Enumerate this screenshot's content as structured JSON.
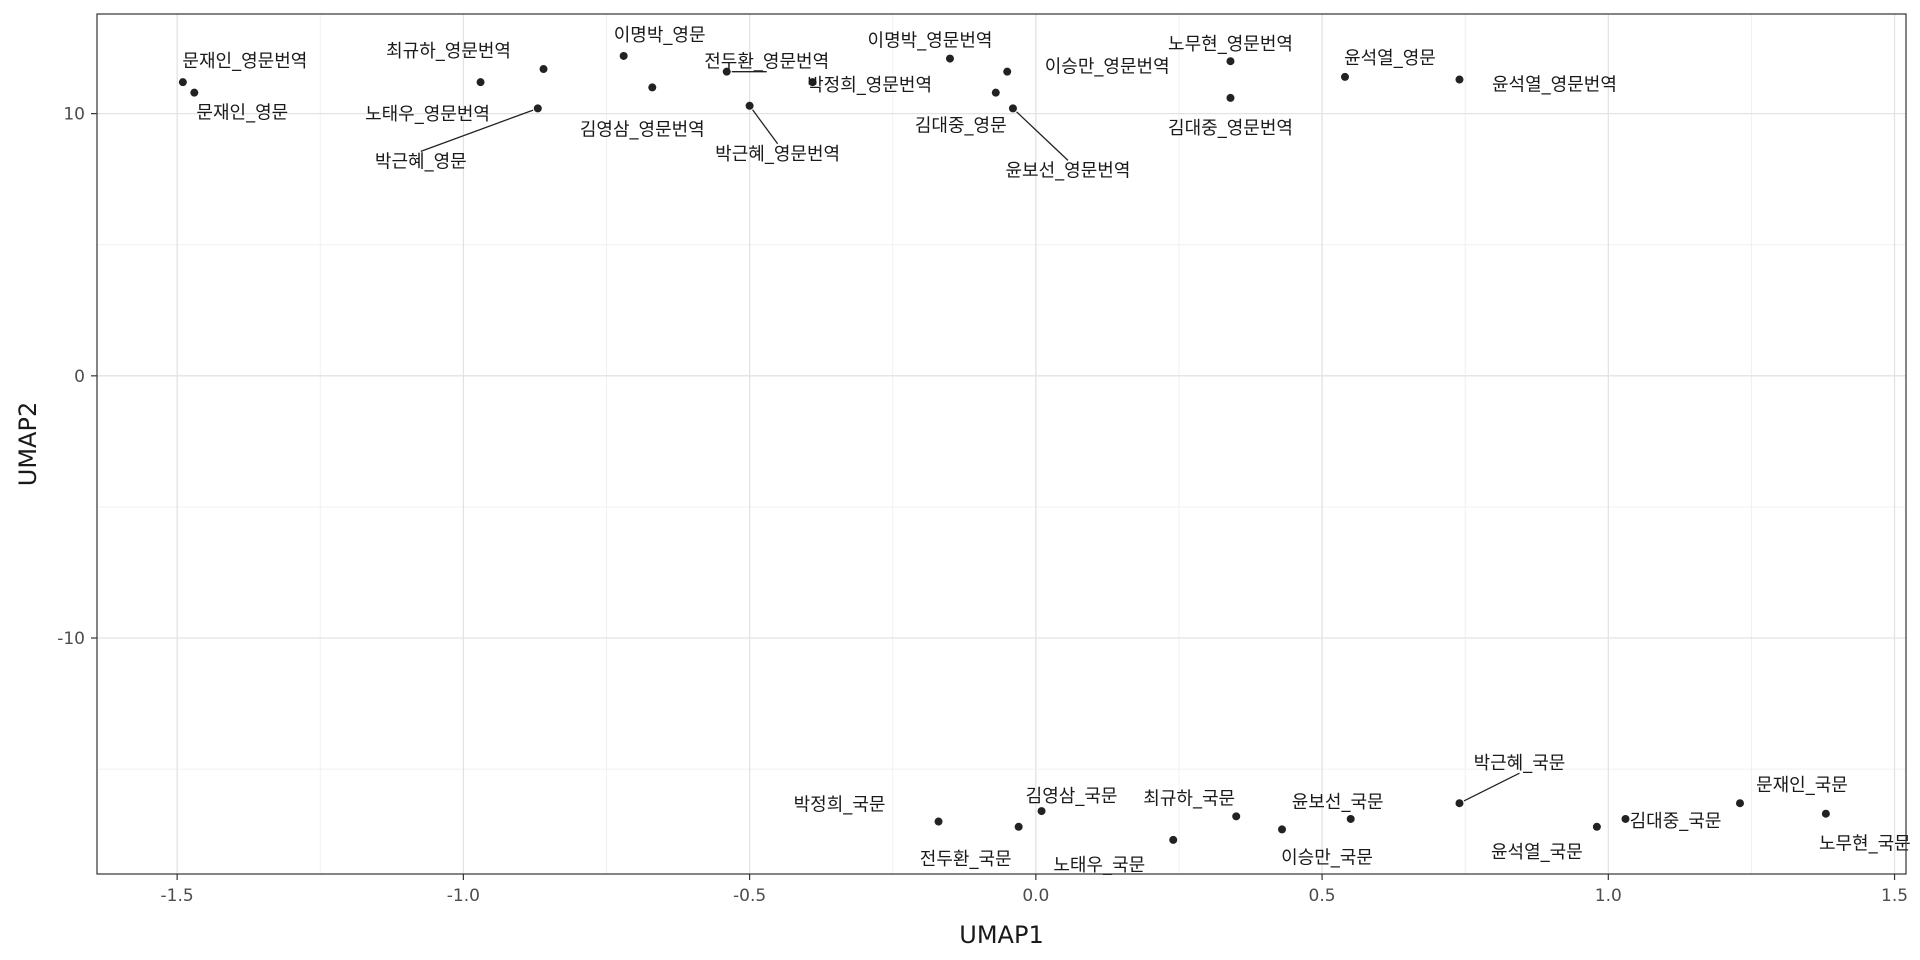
{
  "chart_data": {
    "type": "scatter",
    "title": "",
    "xlabel": "UMAP1",
    "ylabel": "UMAP2",
    "xlim": [
      -1.64,
      1.52
    ],
    "ylim": [
      -19,
      13.8
    ],
    "x_ticks": [
      -1.5,
      -1.0,
      -0.5,
      0.0,
      0.5,
      1.0,
      1.5
    ],
    "x_tick_labels": [
      "-1.5",
      "-1.0",
      "-0.5",
      "0.0",
      "0.5",
      "1.0",
      "1.5"
    ],
    "y_ticks": [
      -10,
      0,
      10
    ],
    "y_tick_labels": [
      "-10",
      "0",
      "10"
    ],
    "grid": true,
    "points": [
      {
        "label": "문재인_영문번역",
        "x": -1.49,
        "y": 11.2
      },
      {
        "label": "문재인_영문",
        "x": -1.47,
        "y": 10.8
      },
      {
        "label": "최규하_영문번역",
        "x": -0.97,
        "y": 11.2
      },
      {
        "label": "노태우_영문번역",
        "x": -0.86,
        "y": 11.7
      },
      {
        "label": "박근혜_영문",
        "x": -0.87,
        "y": 10.2
      },
      {
        "label": "김영삼_영문번역",
        "x": -0.67,
        "y": 11.0
      },
      {
        "label": "이명박_영문",
        "x": -0.72,
        "y": 12.2
      },
      {
        "label": "전두환_영문번역",
        "x": -0.54,
        "y": 11.6
      },
      {
        "label": "박근혜_영문번역",
        "x": -0.5,
        "y": 10.3
      },
      {
        "label": "박정희_영문번역",
        "x": -0.39,
        "y": 11.2
      },
      {
        "label": "이명박_영문번역",
        "x": -0.15,
        "y": 12.1
      },
      {
        "label": "김대중_영문",
        "x": -0.07,
        "y": 10.8
      },
      {
        "label": "이승만_영문번역",
        "x": -0.05,
        "y": 11.6
      },
      {
        "label": "윤보선_영문번역",
        "x": -0.04,
        "y": 10.2
      },
      {
        "label": "노무현_영문번역",
        "x": 0.34,
        "y": 12.0
      },
      {
        "label": "김대중_영문번역",
        "x": 0.34,
        "y": 10.6
      },
      {
        "label": "윤석열_영문",
        "x": 0.54,
        "y": 11.4
      },
      {
        "label": "윤석열_영문번역",
        "x": 0.74,
        "y": 11.3
      },
      {
        "label": "박정희_국문",
        "x": -0.17,
        "y": -17.0
      },
      {
        "label": "전두환_국문",
        "x": -0.03,
        "y": -17.2
      },
      {
        "label": "김영삼_국문",
        "x": 0.01,
        "y": -16.6
      },
      {
        "label": "노태우_국문",
        "x": 0.24,
        "y": -17.7
      },
      {
        "label": "최규하_국문",
        "x": 0.35,
        "y": -16.8
      },
      {
        "label": "이승만_국문",
        "x": 0.43,
        "y": -17.3
      },
      {
        "label": "윤보선_국문",
        "x": 0.55,
        "y": -16.9
      },
      {
        "label": "박근혜_국문",
        "x": 0.74,
        "y": -16.3
      },
      {
        "label": "윤석열_국문",
        "x": 0.98,
        "y": -17.2
      },
      {
        "label": "김대중_국문",
        "x": 1.03,
        "y": -16.9
      },
      {
        "label": "문재인_국문",
        "x": 1.23,
        "y": -16.3
      },
      {
        "label": "노무현_국문",
        "x": 1.38,
        "y": -16.7
      }
    ]
  }
}
